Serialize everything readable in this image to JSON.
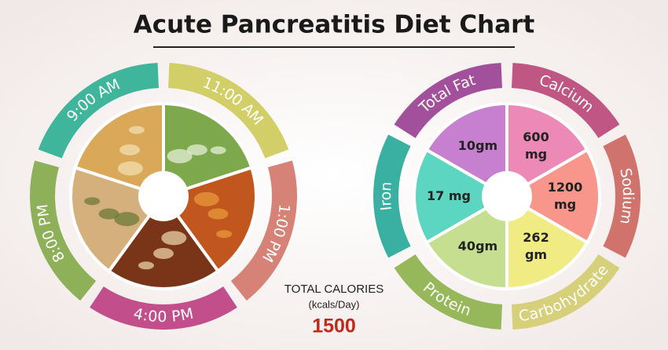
{
  "title": "Acute Pancreatitis Diet Chart",
  "meal_times": [
    "9:00 AM",
    "11:00 AM",
    "1:00 PM",
    "4:00 PM",
    "8:00 PM"
  ],
  "nutrients": [
    {
      "name": "Total Fat",
      "value": "10gm"
    },
    {
      "name": "Calcium",
      "value": "600 mg"
    },
    {
      "name": "Sodium",
      "value": "1200 mg"
    },
    {
      "name": "Carbohydrate",
      "value": "262 gm"
    },
    {
      "name": "Protein",
      "value": "40gm"
    },
    {
      "name": "Iron",
      "value": "17 mg"
    }
  ],
  "total_calories": {
    "label": "TOTAL CALORIES",
    "unit": "(kcals/Day)",
    "value": 1500
  }
}
